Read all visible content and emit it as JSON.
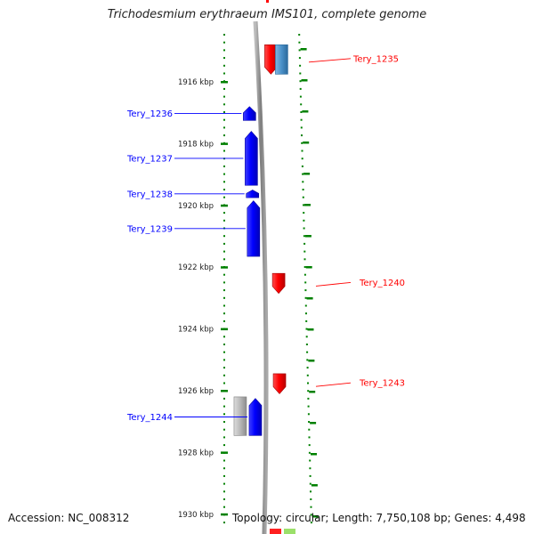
{
  "title": "Trichodesmium erythraeum IMS101, complete genome",
  "footer": {
    "accession": "Accession: NC_008312",
    "topology": "Topology: circular; Length: 7,750,108 bp; Genes: 4,498"
  },
  "colors": {
    "forward_gene": "#0000ff",
    "reverse_gene": "#ff0000",
    "other_gene_blue": "#4a90c8",
    "pseudo_gene": "#b8b8b8",
    "axis_ticks": "#008000",
    "backbone": "#8c8c8c"
  },
  "ruler_unit": "kbp",
  "ruler_ticks": [
    {
      "kbp": 1916,
      "label": "1916 kbp"
    },
    {
      "kbp": 1918,
      "label": "1918 kbp"
    },
    {
      "kbp": 1920,
      "label": "1920 kbp"
    },
    {
      "kbp": 1922,
      "label": "1922 kbp"
    },
    {
      "kbp": 1924,
      "label": "1924 kbp"
    },
    {
      "kbp": 1926,
      "label": "1926 kbp"
    },
    {
      "kbp": 1928,
      "label": "1928 kbp"
    },
    {
      "kbp": 1930,
      "label": "1930 kbp"
    }
  ],
  "genes": [
    {
      "name": "Tery_1235",
      "strand": "-",
      "color": "red",
      "start_kbp": 1914.8,
      "end_kbp": 1915.75,
      "labeled": true
    },
    {
      "name": "",
      "strand": "+",
      "color": "steelblue",
      "start_kbp": 1914.8,
      "end_kbp": 1915.75,
      "labeled": false
    },
    {
      "name": "Tery_1236",
      "strand": "+",
      "color": "blue",
      "start_kbp": 1916.8,
      "end_kbp": 1917.25,
      "labeled": true
    },
    {
      "name": "Tery_1237",
      "strand": "+",
      "color": "blue",
      "start_kbp": 1917.6,
      "end_kbp": 1919.35,
      "labeled": true
    },
    {
      "name": "Tery_1238",
      "strand": "+",
      "color": "blue",
      "start_kbp": 1919.5,
      "end_kbp": 1919.75,
      "labeled": true
    },
    {
      "name": "Tery_1239",
      "strand": "+",
      "color": "blue",
      "start_kbp": 1919.85,
      "end_kbp": 1921.65,
      "labeled": true
    },
    {
      "name": "Tery_1240",
      "strand": "-",
      "color": "red",
      "start_kbp": 1922.2,
      "end_kbp": 1922.85,
      "labeled": true
    },
    {
      "name": "Tery_1243",
      "strand": "-",
      "color": "red",
      "start_kbp": 1925.45,
      "end_kbp": 1926.1,
      "labeled": true
    },
    {
      "name": "",
      "strand": "+",
      "color": "grey",
      "start_kbp": 1926.2,
      "end_kbp": 1927.45,
      "labeled": false
    },
    {
      "name": "Tery_1244",
      "strand": "+",
      "color": "blue",
      "start_kbp": 1926.25,
      "end_kbp": 1927.45,
      "labeled": true
    }
  ]
}
